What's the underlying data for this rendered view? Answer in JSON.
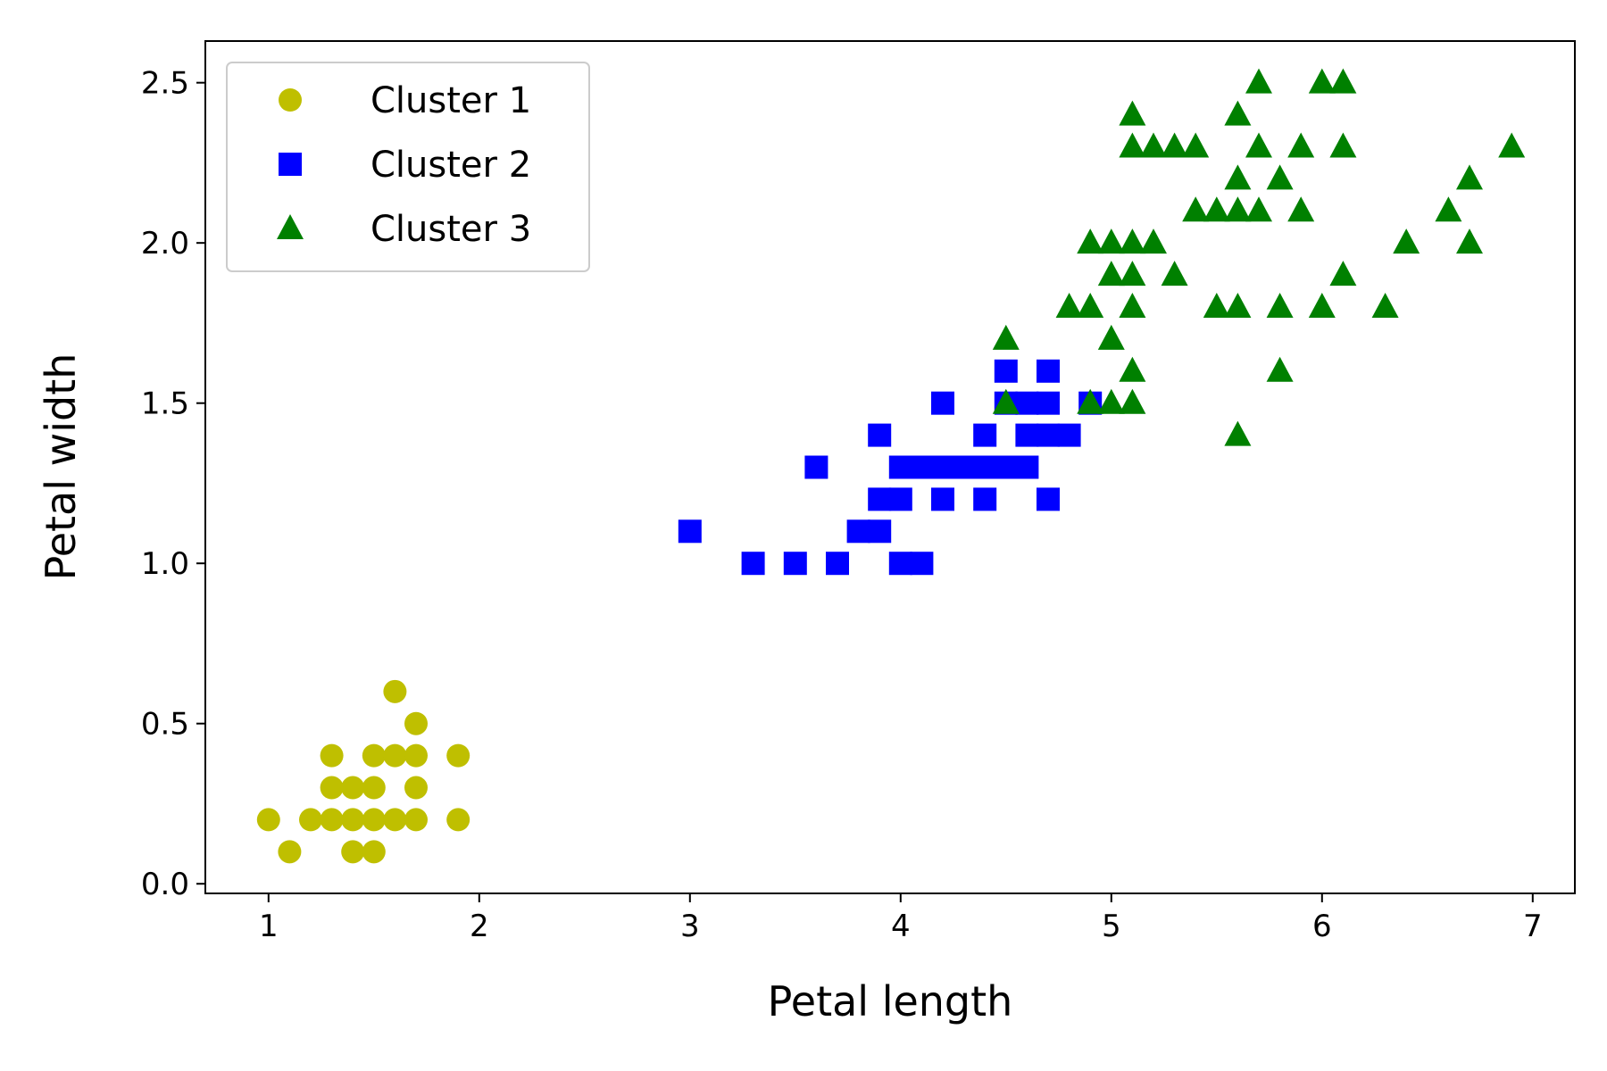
{
  "chart_data": {
    "type": "scatter",
    "title": "",
    "xlabel": "Petal length",
    "ylabel": "Petal width",
    "xlim": [
      0.7,
      7.2
    ],
    "ylim": [
      -0.03,
      2.63
    ],
    "xticks": [
      {
        "value": 1,
        "label": "1"
      },
      {
        "value": 2,
        "label": "2"
      },
      {
        "value": 3,
        "label": "3"
      },
      {
        "value": 4,
        "label": "4"
      },
      {
        "value": 5,
        "label": "5"
      },
      {
        "value": 6,
        "label": "6"
      },
      {
        "value": 7,
        "label": "7"
      }
    ],
    "yticks": [
      {
        "value": 0.0,
        "label": "0.0"
      },
      {
        "value": 0.5,
        "label": "0.5"
      },
      {
        "value": 1.0,
        "label": "1.0"
      },
      {
        "value": 1.5,
        "label": "1.5"
      },
      {
        "value": 2.0,
        "label": "2.0"
      },
      {
        "value": 2.5,
        "label": "2.5"
      }
    ],
    "grid": false,
    "legend_position": "top-left",
    "series": [
      {
        "name": "Cluster 1",
        "marker": "circle",
        "color": "#bfbf00",
        "points": [
          [
            1.0,
            0.2
          ],
          [
            1.1,
            0.1
          ],
          [
            1.2,
            0.2
          ],
          [
            1.3,
            0.2
          ],
          [
            1.3,
            0.3
          ],
          [
            1.3,
            0.4
          ],
          [
            1.4,
            0.1
          ],
          [
            1.4,
            0.2
          ],
          [
            1.4,
            0.3
          ],
          [
            1.5,
            0.1
          ],
          [
            1.5,
            0.2
          ],
          [
            1.5,
            0.3
          ],
          [
            1.5,
            0.4
          ],
          [
            1.6,
            0.2
          ],
          [
            1.6,
            0.4
          ],
          [
            1.6,
            0.6
          ],
          [
            1.7,
            0.2
          ],
          [
            1.7,
            0.3
          ],
          [
            1.7,
            0.4
          ],
          [
            1.7,
            0.5
          ],
          [
            1.9,
            0.2
          ],
          [
            1.9,
            0.4
          ]
        ]
      },
      {
        "name": "Cluster 2",
        "marker": "square",
        "color": "#0000ff",
        "points": [
          [
            3.0,
            1.1
          ],
          [
            3.3,
            1.0
          ],
          [
            3.5,
            1.0
          ],
          [
            3.6,
            1.3
          ],
          [
            3.7,
            1.0
          ],
          [
            3.8,
            1.1
          ],
          [
            3.9,
            1.1
          ],
          [
            3.9,
            1.2
          ],
          [
            3.9,
            1.4
          ],
          [
            4.0,
            1.0
          ],
          [
            4.0,
            1.2
          ],
          [
            4.0,
            1.3
          ],
          [
            4.1,
            1.0
          ],
          [
            4.1,
            1.3
          ],
          [
            4.2,
            1.2
          ],
          [
            4.2,
            1.3
          ],
          [
            4.2,
            1.5
          ],
          [
            4.3,
            1.3
          ],
          [
            4.4,
            1.2
          ],
          [
            4.4,
            1.3
          ],
          [
            4.4,
            1.4
          ],
          [
            4.5,
            1.3
          ],
          [
            4.5,
            1.5
          ],
          [
            4.5,
            1.6
          ],
          [
            4.6,
            1.3
          ],
          [
            4.6,
            1.4
          ],
          [
            4.6,
            1.5
          ],
          [
            4.7,
            1.2
          ],
          [
            4.7,
            1.4
          ],
          [
            4.7,
            1.5
          ],
          [
            4.7,
            1.6
          ],
          [
            4.8,
            1.4
          ],
          [
            4.9,
            1.5
          ]
        ]
      },
      {
        "name": "Cluster 3",
        "marker": "triangle",
        "color": "#008000",
        "points": [
          [
            4.5,
            1.7
          ],
          [
            4.5,
            1.5
          ],
          [
            4.8,
            1.8
          ],
          [
            4.9,
            1.8
          ],
          [
            4.9,
            2.0
          ],
          [
            4.9,
            1.5
          ],
          [
            5.0,
            2.0
          ],
          [
            5.0,
            1.9
          ],
          [
            5.0,
            1.7
          ],
          [
            5.0,
            1.5
          ],
          [
            5.1,
            2.4
          ],
          [
            5.1,
            2.3
          ],
          [
            5.1,
            2.0
          ],
          [
            5.1,
            1.9
          ],
          [
            5.1,
            1.8
          ],
          [
            5.1,
            1.6
          ],
          [
            5.1,
            1.5
          ],
          [
            5.2,
            2.3
          ],
          [
            5.2,
            2.0
          ],
          [
            5.3,
            2.3
          ],
          [
            5.3,
            1.9
          ],
          [
            5.4,
            2.3
          ],
          [
            5.4,
            2.1
          ],
          [
            5.5,
            2.1
          ],
          [
            5.5,
            1.8
          ],
          [
            5.6,
            2.4
          ],
          [
            5.6,
            2.2
          ],
          [
            5.6,
            2.1
          ],
          [
            5.6,
            1.8
          ],
          [
            5.6,
            1.4
          ],
          [
            5.7,
            2.5
          ],
          [
            5.7,
            2.3
          ],
          [
            5.7,
            2.1
          ],
          [
            5.8,
            2.2
          ],
          [
            5.8,
            1.8
          ],
          [
            5.8,
            1.6
          ],
          [
            5.9,
            2.3
          ],
          [
            5.9,
            2.1
          ],
          [
            6.0,
            2.5
          ],
          [
            6.0,
            1.8
          ],
          [
            6.1,
            2.5
          ],
          [
            6.1,
            2.3
          ],
          [
            6.1,
            1.9
          ],
          [
            6.3,
            1.8
          ],
          [
            6.4,
            2.0
          ],
          [
            6.6,
            2.1
          ],
          [
            6.7,
            2.2
          ],
          [
            6.7,
            2.0
          ],
          [
            6.9,
            2.3
          ]
        ]
      }
    ]
  }
}
